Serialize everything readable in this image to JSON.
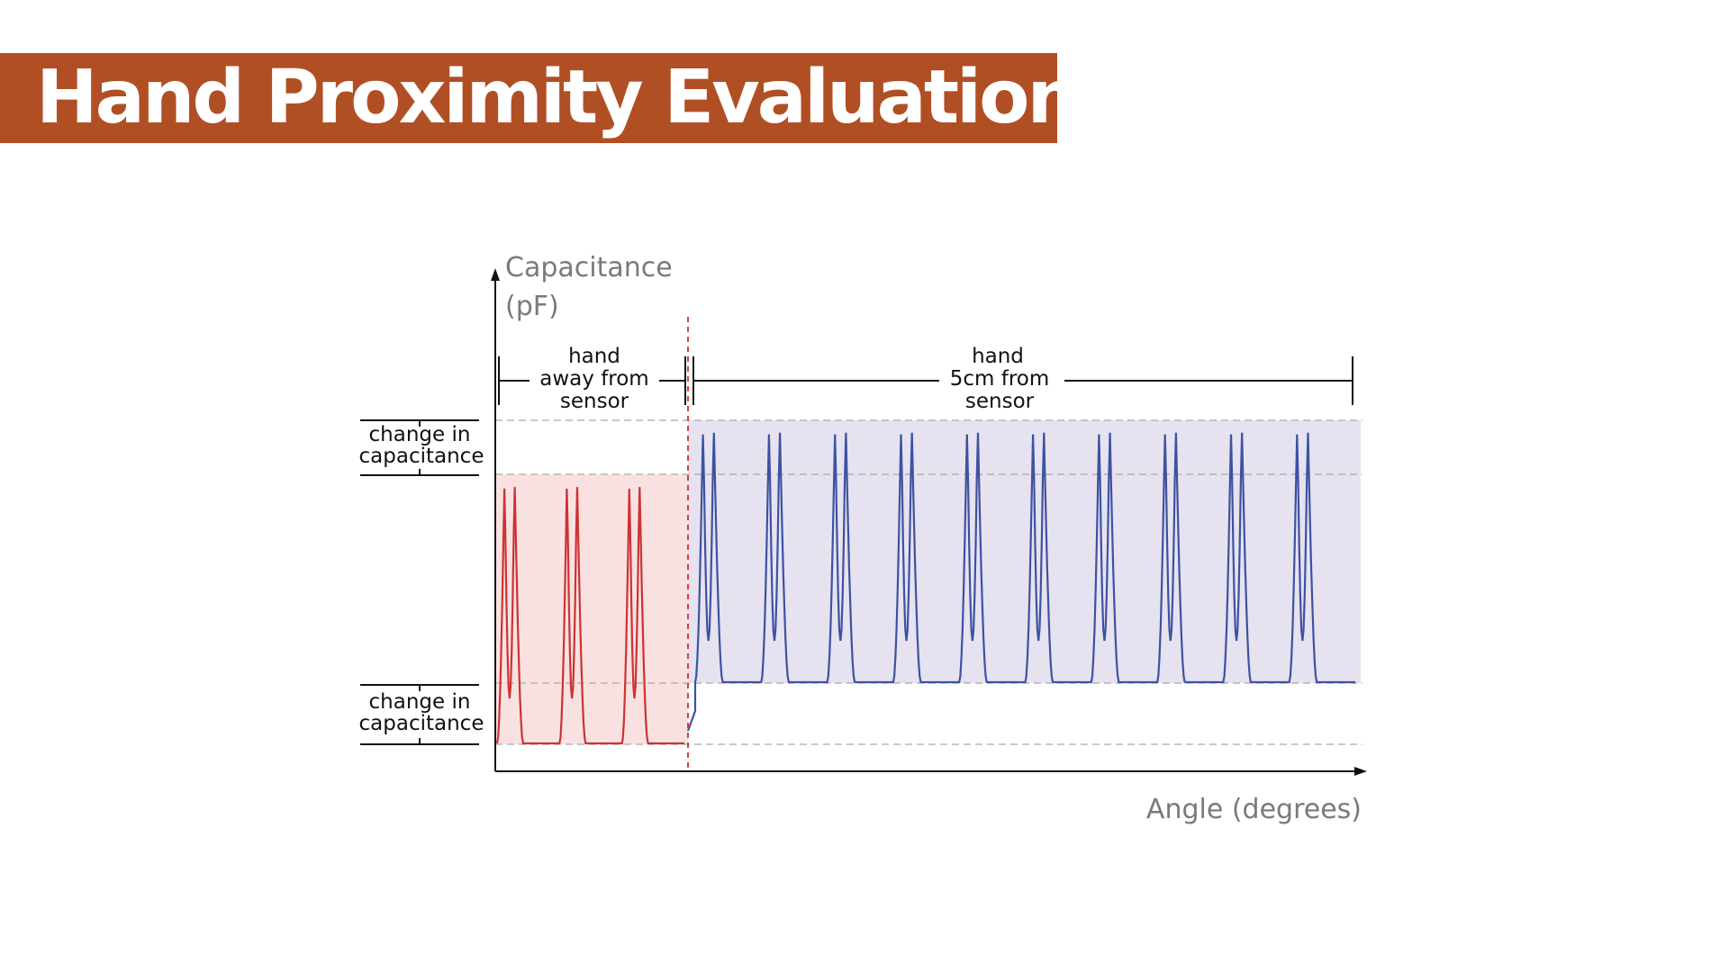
{
  "title": "Hand Proximity Evaluation",
  "diagram": {
    "y_axis_label_line1": "Capacitance",
    "y_axis_label_line2": "(pF)",
    "x_axis_label": "Angle (degrees)",
    "region_away": {
      "line1": "hand",
      "line2": "away from",
      "line3": "sensor"
    },
    "region_near": {
      "line1": "hand",
      "line2": "5cm from",
      "line3": "sensor"
    },
    "upper_bracket": {
      "line1": "change in",
      "line2": "capacitance"
    },
    "lower_bracket": {
      "line1": "change in",
      "line2": "capacitance"
    },
    "colors": {
      "banner": "#b14f24",
      "away_signal": "#cc3333",
      "away_fill": "#f9e1e1",
      "near_signal": "#3d52a0",
      "near_fill": "#e6e2f0",
      "boundary": "#cc3333"
    },
    "signals": {
      "away_pulses": 6,
      "near_pulses": 20
    }
  }
}
